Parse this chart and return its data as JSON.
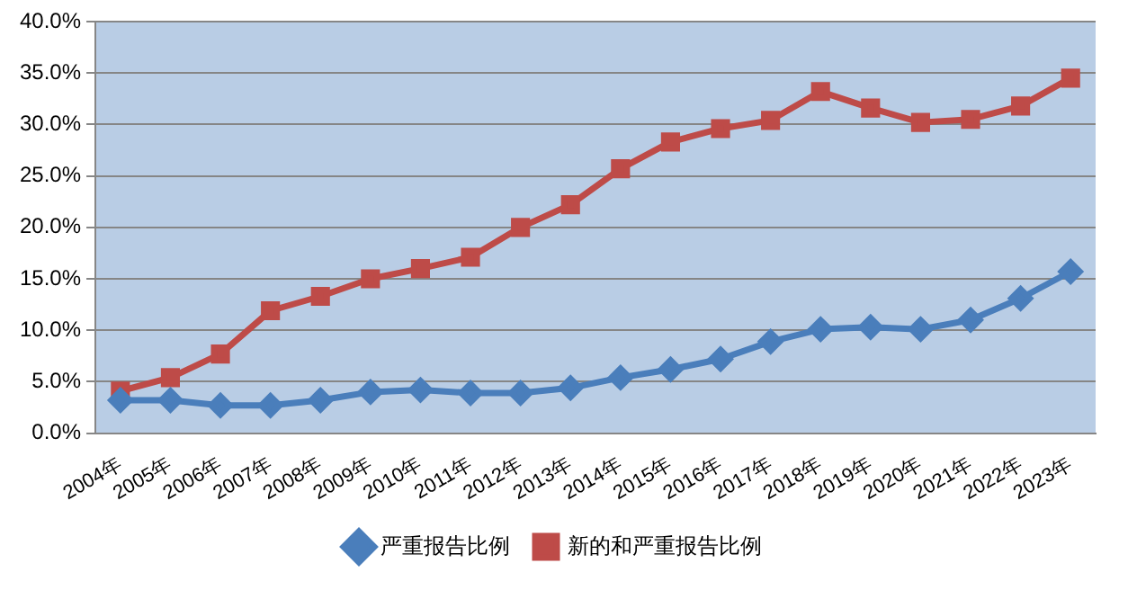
{
  "chart_data": {
    "type": "line",
    "categories": [
      "2004年",
      "2005年",
      "2006年",
      "2007年",
      "2008年",
      "2009年",
      "2010年",
      "2011年",
      "2012年",
      "2013年",
      "2014年",
      "2015年",
      "2016年",
      "2017年",
      "2018年",
      "2019年",
      "2020年",
      "2021年",
      "2022年",
      "2023年"
    ],
    "series": [
      {
        "name": "严重报告比例",
        "color": "#4a7ebb",
        "marker": "diamond",
        "values": [
          3.2,
          3.2,
          2.7,
          2.7,
          3.2,
          4.0,
          4.2,
          3.9,
          3.9,
          4.4,
          5.4,
          6.2,
          7.2,
          8.9,
          10.1,
          10.3,
          10.1,
          11.0,
          13.1,
          15.7
        ]
      },
      {
        "name": "新的和严重报告比例",
        "color": "#be4b48",
        "marker": "square",
        "values": [
          4.1,
          5.4,
          7.7,
          11.9,
          13.3,
          15.0,
          16.0,
          17.1,
          20.0,
          22.2,
          25.7,
          28.3,
          29.6,
          30.4,
          33.2,
          31.6,
          30.2,
          30.5,
          31.8,
          34.5
        ]
      }
    ],
    "ylim": [
      0,
      40
    ],
    "yticks": [
      {
        "value": 0,
        "label": "0.0%"
      },
      {
        "value": 5,
        "label": "5.0%"
      },
      {
        "value": 10,
        "label": "10.0%"
      },
      {
        "value": 15,
        "label": "15.0%"
      },
      {
        "value": 20,
        "label": "20.0%"
      },
      {
        "value": 25,
        "label": "25.0%"
      },
      {
        "value": 30,
        "label": "30.0%"
      },
      {
        "value": 35,
        "label": "35.0%"
      },
      {
        "value": 40,
        "label": "40.0%"
      }
    ],
    "grid": "y",
    "legend": "bottom",
    "line_style": "solid"
  }
}
